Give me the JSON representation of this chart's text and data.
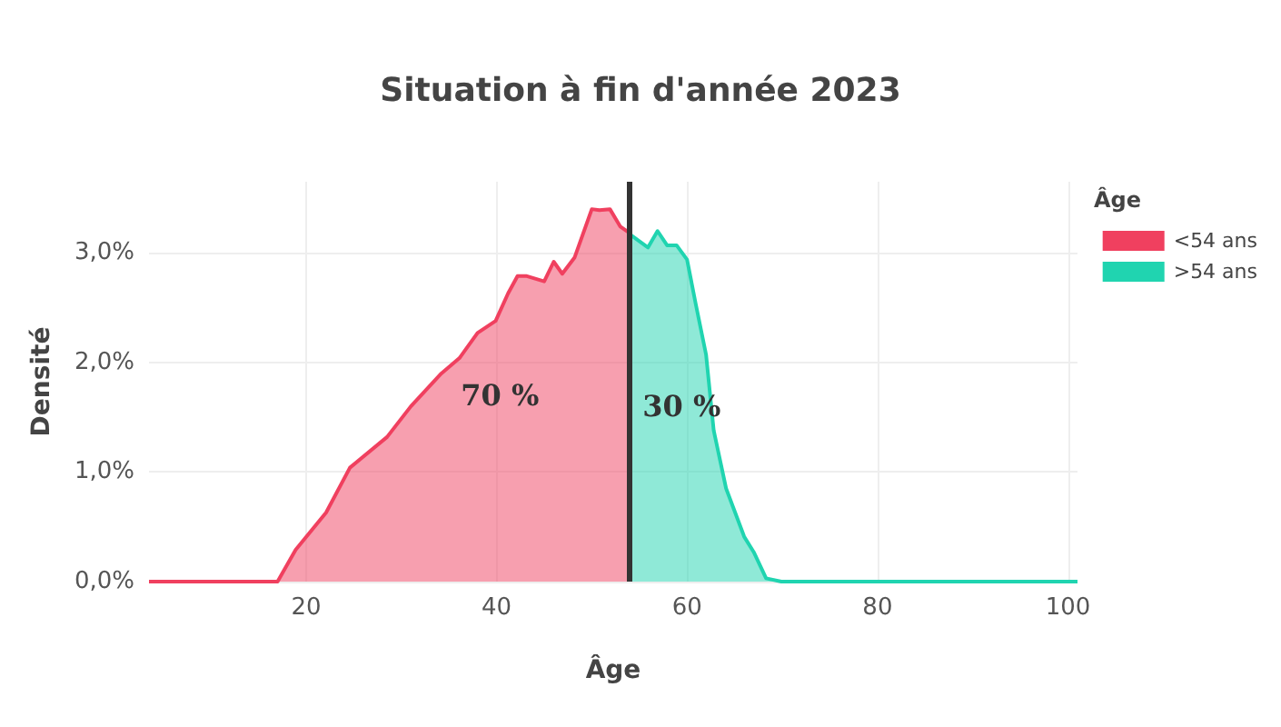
{
  "chart_data": {
    "type": "area",
    "title": "Situation à fin d'année 2023",
    "xlabel": "Âge",
    "ylabel": "Densité",
    "legend_title": "Âge",
    "series": [
      {
        "name": "<54 ans",
        "color": "#f0405f",
        "x": [
          3.5,
          10,
          17.0,
          18.9,
          22.1,
          24.6,
          28.5,
          31.0,
          34.2,
          36.1,
          38.0,
          39.9,
          41.2,
          42.2,
          43.1,
          45.0,
          46.0,
          46.9,
          48.2,
          50.0,
          50.8,
          51.9,
          53.0,
          54.0
        ],
        "values": [
          0,
          0,
          0,
          0.29,
          0.63,
          1.04,
          1.32,
          1.6,
          1.9,
          2.04,
          2.27,
          2.38,
          2.63,
          2.79,
          2.79,
          2.74,
          2.92,
          2.81,
          2.96,
          3.4,
          3.39,
          3.4,
          3.24,
          3.18
        ]
      },
      {
        "name": ">54 ans",
        "color": "#20d4b0",
        "x": [
          54.0,
          55.9,
          56.9,
          57.9,
          58.9,
          60.0,
          60.9,
          62.0,
          62.8,
          64.1,
          66.0,
          67.0,
          68.3,
          69.9,
          80,
          90,
          101
        ],
        "values": [
          3.17,
          3.05,
          3.2,
          3.07,
          3.07,
          2.94,
          2.54,
          2.07,
          1.38,
          0.85,
          0.41,
          0.27,
          0.03,
          0,
          0,
          0,
          0
        ]
      }
    ],
    "xlim": [
      3.5,
      101
    ],
    "xticks": [
      20,
      40,
      60,
      80,
      100
    ],
    "ylim": [
      0,
      3.65
    ],
    "yticks": [
      {
        "value": 0,
        "label": "0,0%"
      },
      {
        "value": 1,
        "label": "1,0%"
      },
      {
        "value": 2,
        "label": "2,0%"
      },
      {
        "value": 3,
        "label": "3,0%"
      }
    ],
    "ref_lines": [
      {
        "axis": "x",
        "value": 54,
        "color": "#333333"
      }
    ],
    "annotations": [
      "70 %",
      "30 %"
    ],
    "grid": true,
    "legend": "top right",
    "marker": "none",
    "line_style": "solid"
  }
}
